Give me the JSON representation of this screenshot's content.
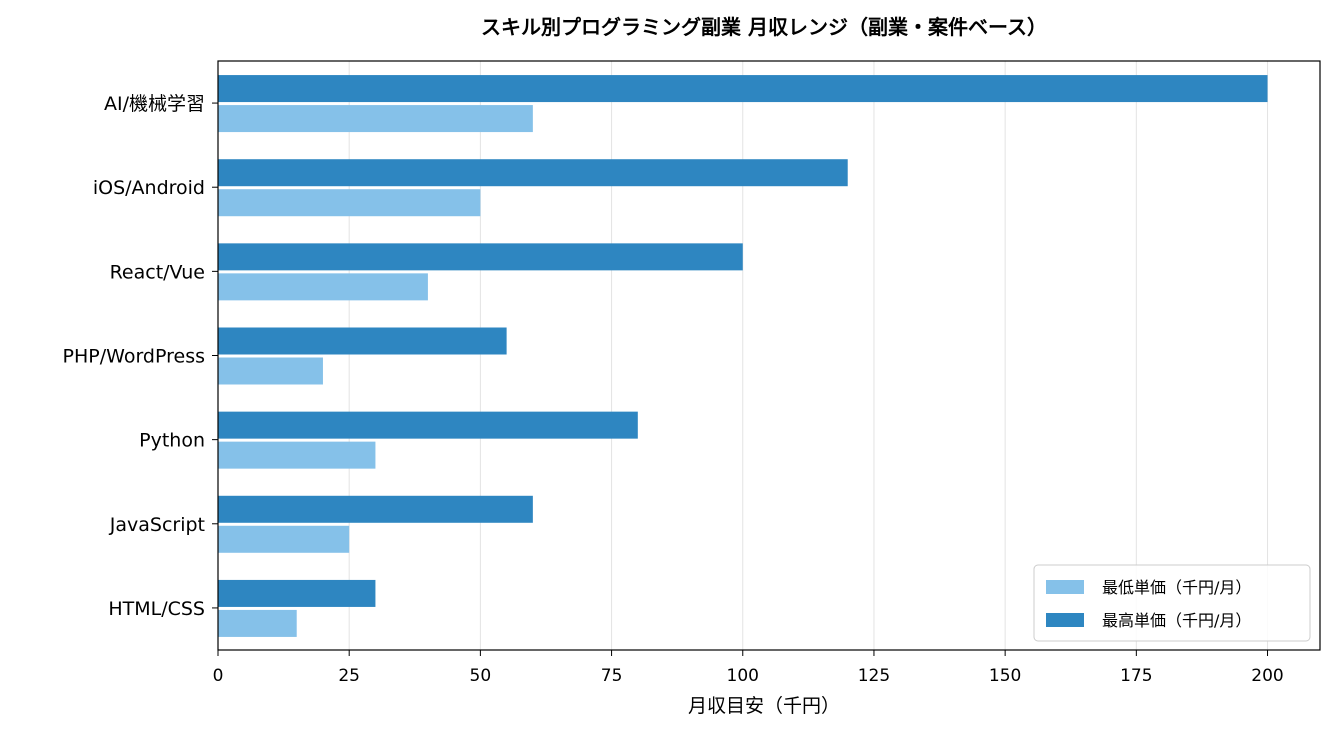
{
  "chart_data": {
    "type": "bar",
    "orientation": "horizontal",
    "title": "スキル別プログラミング副業 月収レンジ（副業・案件ベース）",
    "xlabel": "月収目安（千円）",
    "ylabel": "",
    "categories": [
      "AI/機械学習",
      "iOS/Android",
      "React/Vue",
      "PHP/WordPress",
      "Python",
      "JavaScript",
      "HTML/CSS"
    ],
    "series": [
      {
        "name": "最低単価（千円/月）",
        "values": [
          60,
          50,
          40,
          20,
          30,
          25,
          15
        ],
        "color": "#85c1e9"
      },
      {
        "name": "最高単価（千円/月）",
        "values": [
          200,
          120,
          100,
          55,
          80,
          60,
          30
        ],
        "color": "#2e86c1"
      }
    ],
    "xlim": [
      0,
      210
    ],
    "xticks": [
      "0",
      "25",
      "50",
      "75",
      "100",
      "125",
      "150",
      "175",
      "200"
    ],
    "grid": "vertical",
    "legend_position": "bottom-right"
  }
}
